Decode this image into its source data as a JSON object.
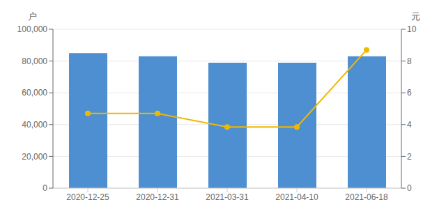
{
  "chart_data": {
    "type": "bar",
    "categories": [
      "2020-12-25",
      "2020-12-31",
      "2021-03-31",
      "2021-04-10",
      "2021-06-18"
    ],
    "series": [
      {
        "type": "bar",
        "color": "#4d8fd1",
        "values": [
          85000,
          83000,
          79000,
          79000,
          83000
        ]
      },
      {
        "type": "line",
        "axis": "y2",
        "color": "#f0b800",
        "marker": "circle",
        "values": [
          4.7,
          4.7,
          3.85,
          3.85,
          8.7
        ]
      }
    ],
    "ylabel": "户",
    "y2label": "元",
    "ylim": [
      0,
      100000
    ],
    "yticks": [
      0,
      {
        "value": 20000,
        "label": "20,000"
      },
      {
        "value": 40000,
        "label": "40,000"
      },
      {
        "value": 60000,
        "label": "60,000"
      },
      {
        "value": 80000,
        "label": "80,000"
      },
      {
        "value": 100000,
        "label": "100,000"
      }
    ],
    "y2lim": [
      0,
      10
    ],
    "y2ticks": [
      0,
      2,
      4,
      6,
      8,
      10
    ],
    "grid": true
  }
}
